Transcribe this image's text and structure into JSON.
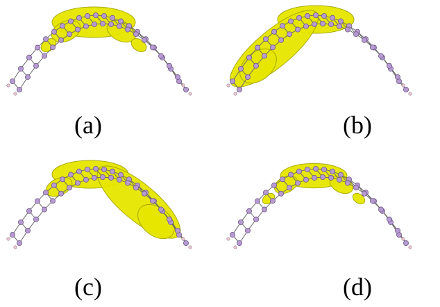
{
  "figure": {
    "panels": [
      {
        "id": "a",
        "label": "(a)",
        "density": "center"
      },
      {
        "id": "b",
        "label": "(b)",
        "density": "left-lobe"
      },
      {
        "id": "c",
        "label": "(c)",
        "density": "right-lobe"
      },
      {
        "id": "d",
        "label": "(d)",
        "density": "center-small"
      }
    ]
  },
  "colors": {
    "isosurface": "#e6e600",
    "isosurface_edge": "#a6a600",
    "atom": "#b79ad1",
    "atom_edge": "#6e5a86",
    "bond": "#6a6a6a",
    "hydrogen": "#f0c8d0"
  }
}
